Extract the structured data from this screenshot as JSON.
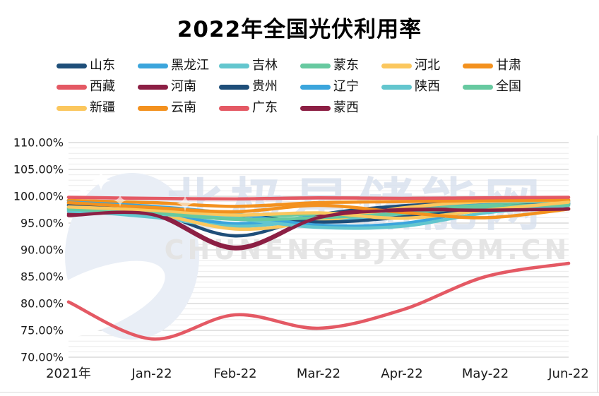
{
  "title": "2022年全国光伏利用率",
  "watermark": {
    "cn_text": "北极星储能网",
    "en_text": "CHUNENG.BJX.COM.CN"
  },
  "colors": {
    "navy": "#1E4E79",
    "light_blue": "#3BA5DC",
    "teal": "#63C6CE",
    "green": "#67C9A0",
    "yellow": "#FBC75E",
    "orange": "#F3911E",
    "red": "#E45964",
    "maroon": "#8C1F44",
    "grid_major": "#D2D2D2",
    "grid_minor": "#ECECEC",
    "axis_text": "#1a1a1a"
  },
  "chart_data": {
    "type": "line",
    "title": "2022年全国光伏利用率",
    "legend_position": "top",
    "grid": "horizontal, major every 5% + minor every 1%",
    "unit": "%",
    "ylim": [
      70,
      110
    ],
    "y_major_step": 5,
    "y_tick_labels": [
      "110.00%",
      "105.00%",
      "100.00%",
      "95.00%",
      "90.00%",
      "85.00%",
      "80.00%",
      "75.00%",
      "70.00%"
    ],
    "x_labels": [
      "2021年",
      "Jan-22",
      "Feb-22",
      "Mar-22",
      "Apr-22",
      "May-22",
      "Jun-22"
    ],
    "series": [
      {
        "name": "山东",
        "color": "#1E4E79",
        "values": [
          99.2,
          97.2,
          92.6,
          96.5,
          98.2,
          98.8,
          99.1
        ]
      },
      {
        "name": "黑龙江",
        "color": "#3BA5DC",
        "values": [
          98.4,
          97.0,
          94.9,
          96.3,
          97.6,
          98.4,
          98.9
        ]
      },
      {
        "name": "吉林",
        "color": "#63C6CE",
        "values": [
          97.4,
          96.1,
          94.4,
          95.6,
          96.3,
          97.9,
          98.5
        ]
      },
      {
        "name": "蒙东",
        "color": "#67C9A0",
        "values": [
          97.8,
          97.3,
          96.3,
          96.7,
          97.4,
          98.3,
          98.6
        ]
      },
      {
        "name": "河北",
        "color": "#FBC75E",
        "values": [
          98.6,
          96.9,
          93.9,
          95.3,
          97.8,
          99.0,
          99.2
        ]
      },
      {
        "name": "甘肃",
        "color": "#F3911E",
        "values": [
          99.2,
          98.8,
          98.1,
          98.8,
          99.0,
          99.2,
          99.3
        ]
      },
      {
        "name": "西藏",
        "color": "#E45964",
        "values": [
          99.8,
          99.6,
          99.5,
          99.7,
          99.6,
          99.7,
          99.8
        ]
      },
      {
        "name": "河南",
        "color": "#8C1F44",
        "values": [
          96.7,
          96.9,
          90.5,
          96.2,
          97.5,
          97.5,
          97.7
        ]
      },
      {
        "name": "贵州",
        "color": "#1E4E79",
        "values": [
          98.3,
          97.6,
          96.6,
          95.2,
          96.1,
          97.9,
          98.6
        ]
      },
      {
        "name": "辽宁",
        "color": "#3BA5DC",
        "values": [
          98.9,
          98.1,
          96.7,
          94.6,
          94.9,
          97.6,
          98.7
        ]
      },
      {
        "name": "陕西",
        "color": "#63C6CE",
        "values": [
          97.2,
          96.7,
          95.8,
          94.2,
          94.4,
          96.9,
          98.3
        ]
      },
      {
        "name": "全国",
        "color": "#67C9A0",
        "values": [
          97.6,
          96.9,
          95.7,
          96.0,
          96.8,
          98.0,
          98.4
        ]
      },
      {
        "name": "新疆",
        "color": "#FBC75E",
        "values": [
          98.0,
          97.4,
          96.5,
          96.9,
          95.9,
          97.4,
          98.9
        ]
      },
      {
        "name": "云南",
        "color": "#F3911E",
        "values": [
          98.8,
          97.9,
          97.1,
          98.3,
          97.0,
          96.0,
          97.6
        ]
      },
      {
        "name": "广东",
        "color": "#E45964",
        "values": [
          80.3,
          73.4,
          77.9,
          75.4,
          78.8,
          85.0,
          87.5
        ]
      },
      {
        "name": "蒙西",
        "color": "#8C1F44",
        "values": [
          96.4,
          96.6,
          90.2,
          96.0,
          97.4,
          97.4,
          97.6
        ]
      }
    ]
  }
}
